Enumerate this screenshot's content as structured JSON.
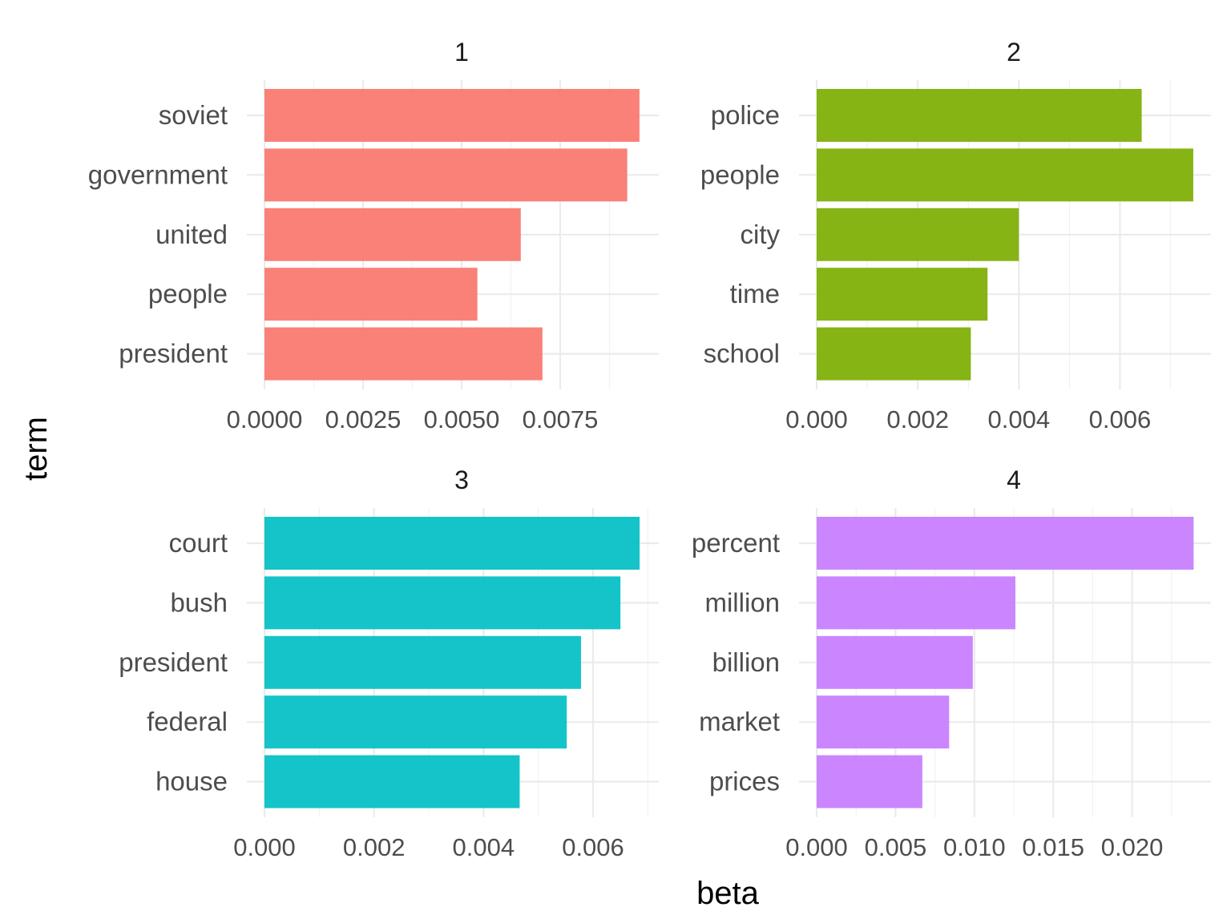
{
  "chart_data": {
    "type": "bar",
    "orientation": "horizontal",
    "facet_layout": "2x2",
    "xlabel": "beta",
    "ylabel": "term",
    "grid": true,
    "legend": "none",
    "facets": [
      {
        "label": "1",
        "color": "#F8766D",
        "terms": [
          "soviet",
          "government",
          "united",
          "people",
          "president"
        ],
        "values": [
          0.00951,
          0.0092,
          0.0065,
          0.0054,
          0.00705
        ],
        "xlim": [
          0,
          0.01
        ],
        "xticks": [
          0,
          0.0025,
          0.005,
          0.0075
        ],
        "xtick_labels": [
          "0.0000",
          "0.0025",
          "0.0050",
          "0.0075"
        ]
      },
      {
        "label": "2",
        "color": "#7CAE00",
        "terms": [
          "police",
          "people",
          "city",
          "time",
          "school"
        ],
        "values": [
          0.00643,
          0.00745,
          0.004,
          0.00338,
          0.00305
        ],
        "xlim": [
          0,
          0.0078
        ],
        "xticks": [
          0,
          0.002,
          0.004,
          0.006
        ],
        "xtick_labels": [
          "0.000",
          "0.002",
          "0.004",
          "0.006"
        ]
      },
      {
        "label": "3",
        "color": "#00BFC4",
        "terms": [
          "court",
          "bush",
          "president",
          "federal",
          "house"
        ],
        "values": [
          0.00685,
          0.0065,
          0.00578,
          0.00552,
          0.00466
        ],
        "xlim": [
          0,
          0.0072
        ],
        "xticks": [
          0,
          0.002,
          0.004,
          0.006
        ],
        "xtick_labels": [
          "0.000",
          "0.002",
          "0.004",
          "0.006"
        ]
      },
      {
        "label": "4",
        "color": "#C77CFF",
        "terms": [
          "percent",
          "million",
          "billion",
          "market",
          "prices"
        ],
        "values": [
          0.0239,
          0.0126,
          0.0099,
          0.0084,
          0.0067
        ],
        "xlim": [
          0,
          0.025
        ],
        "xticks": [
          0,
          0.005,
          0.01,
          0.015,
          0.02
        ],
        "xtick_labels": [
          "0.000",
          "0.005",
          "0.010",
          "0.015",
          "0.020"
        ]
      }
    ]
  }
}
